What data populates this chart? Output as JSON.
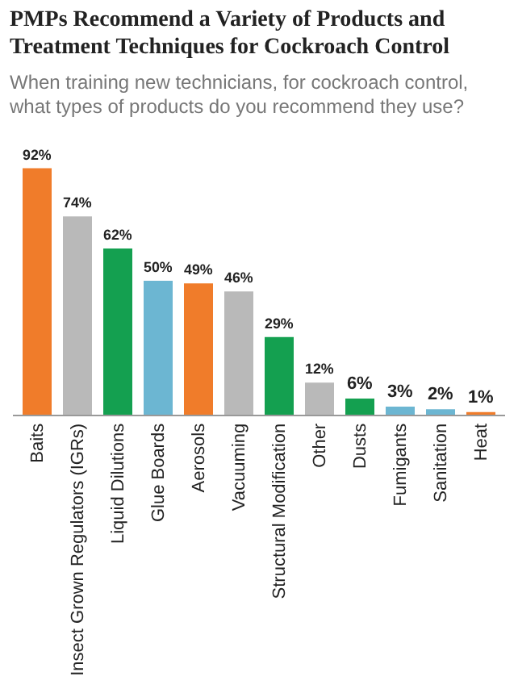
{
  "chart_data": {
    "type": "bar",
    "title": "PMPs Recommend a Variety of Products and Treatment Techniques for Cockroach Control",
    "subtitle": "When training new technicians, for cockroach control, what types of products do you recommend they use?",
    "categories": [
      "Baits",
      "Insect Grown Regulators (IGRs)",
      "Liquid Dilutions",
      "Glue Boards",
      "Aerosols",
      "Vacuuming",
      "Structural Modification",
      "Other",
      "Dusts",
      "Fumigants",
      "Sanitation",
      "Heat"
    ],
    "values": [
      92,
      74,
      62,
      50,
      49,
      46,
      29,
      12,
      6,
      3,
      2,
      1
    ],
    "value_labels": [
      "92%",
      "74%",
      "62%",
      "50%",
      "49%",
      "46%",
      "29%",
      "12%",
      "6%",
      "3%",
      "2%",
      "1%"
    ],
    "colors": [
      "#f07c2a",
      "#b9b9b9",
      "#14a050",
      "#6cb6d2",
      "#f07c2a",
      "#b9b9b9",
      "#14a050",
      "#b9b9b9",
      "#14a050",
      "#6cb6d2",
      "#6cb6d2",
      "#f07c2a"
    ],
    "grid": false,
    "legend": false
  }
}
